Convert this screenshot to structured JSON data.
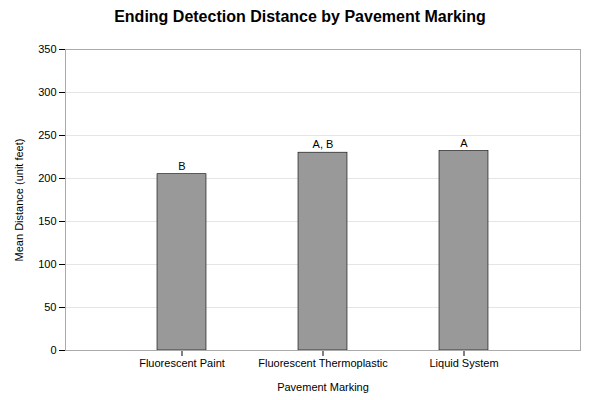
{
  "chart_data": {
    "type": "bar",
    "title": "Ending Detection Distance by Pavement Marking",
    "xlabel": "Pavement Marking",
    "ylabel": "Mean Distance (unit feet)",
    "categories": [
      "Fluorescent Paint",
      "Fluorescent Thermoplastic",
      "Liquid System"
    ],
    "values": [
      205,
      230,
      232
    ],
    "annotations": [
      "B",
      "A, B",
      "A"
    ],
    "color": "#999999",
    "ylim": [
      0,
      350
    ],
    "yticks": [
      0,
      50,
      100,
      150,
      200,
      250,
      300,
      350
    ],
    "grid": true
  }
}
